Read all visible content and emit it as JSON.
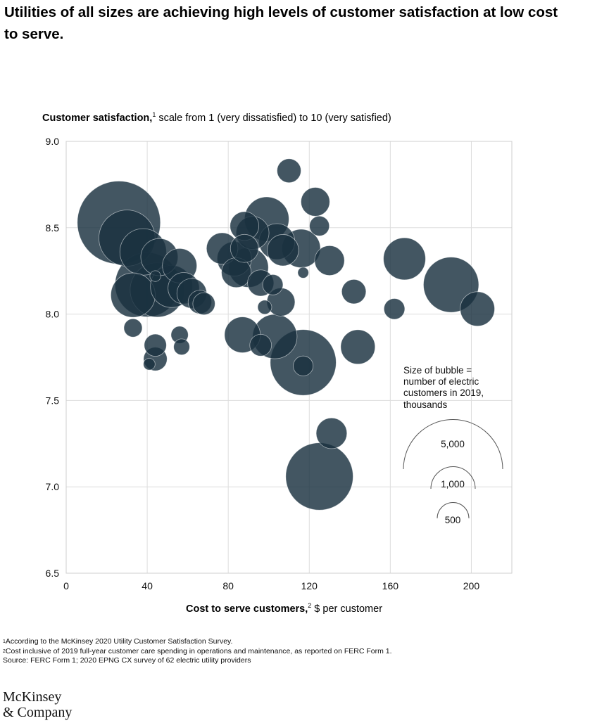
{
  "title": "Utilities of all sizes are achieving high levels of customer satisfaction at low cost to serve.",
  "ylabel": {
    "bold": "Customer satisfaction,",
    "sup": "1",
    "rest": " scale from 1 (very dissatisfied) to 10 (very satisfied)"
  },
  "xlabel": {
    "bold": "Cost to serve customers,",
    "sup": "2",
    "rest": " $ per customer"
  },
  "legend": {
    "lines": [
      "Size of bubble =",
      "number of electric",
      "customers in 2019,",
      "thousands"
    ],
    "items": [
      {
        "label": "5,000",
        "value": 5000
      },
      {
        "label": "1,000",
        "value": 1000
      },
      {
        "label": "500",
        "value": 500
      }
    ]
  },
  "footnotes": [
    {
      "sup": "1",
      "text": "According to the McKinsey 2020 Utility Customer Satisfaction Survey."
    },
    {
      "sup": "2",
      "text": "Cost inclusive of 2019 full-year customer care spending in operations and maintenance, as reported on FERC Form 1."
    },
    {
      "sup": "",
      "text": " Source: FERC Form 1; 2020 EPNG CX survey of 62 electric utility providers"
    }
  ],
  "brand": {
    "line1": "McKinsey",
    "line2": "& Company"
  },
  "colors": {
    "bubble": "#1a3140",
    "grid": "#dddddd",
    "legend_stroke": "#555555"
  },
  "chart_data": {
    "type": "scatter",
    "xlim": [
      0,
      220
    ],
    "ylim": [
      6.5,
      9.0
    ],
    "xticks": [
      "0",
      "40",
      "80",
      "120",
      "160",
      "200"
    ],
    "yticks": [
      "6.5",
      "7.0",
      "7.5",
      "8.0",
      "8.5",
      "9.0"
    ],
    "grid": true,
    "points": [
      {
        "x": 26,
        "y": 8.53,
        "size": 3500
      },
      {
        "x": 30,
        "y": 8.44,
        "size": 1600
      },
      {
        "x": 38,
        "y": 8.36,
        "size": 1100
      },
      {
        "x": 46,
        "y": 8.33,
        "size": 700
      },
      {
        "x": 40,
        "y": 8.17,
        "size": 2100
      },
      {
        "x": 33,
        "y": 8.11,
        "size": 1000
      },
      {
        "x": 45,
        "y": 8.14,
        "size": 1500
      },
      {
        "x": 52,
        "y": 8.16,
        "size": 900
      },
      {
        "x": 56,
        "y": 8.28,
        "size": 600
      },
      {
        "x": 58,
        "y": 8.15,
        "size": 500
      },
      {
        "x": 62,
        "y": 8.12,
        "size": 450
      },
      {
        "x": 66,
        "y": 8.07,
        "size": 280
      },
      {
        "x": 68,
        "y": 8.06,
        "size": 250
      },
      {
        "x": 44,
        "y": 8.22,
        "size": 60
      },
      {
        "x": 33,
        "y": 7.92,
        "size": 170
      },
      {
        "x": 44,
        "y": 7.82,
        "size": 250
      },
      {
        "x": 44,
        "y": 7.74,
        "size": 280
      },
      {
        "x": 41,
        "y": 7.71,
        "size": 70
      },
      {
        "x": 56,
        "y": 7.88,
        "size": 150
      },
      {
        "x": 57,
        "y": 7.81,
        "size": 130
      },
      {
        "x": 77,
        "y": 8.38,
        "size": 500
      },
      {
        "x": 83,
        "y": 8.32,
        "size": 600
      },
      {
        "x": 84,
        "y": 8.24,
        "size": 450
      },
      {
        "x": 90,
        "y": 8.27,
        "size": 800
      },
      {
        "x": 88,
        "y": 8.51,
        "size": 420
      },
      {
        "x": 92,
        "y": 8.47,
        "size": 550
      },
      {
        "x": 99,
        "y": 8.55,
        "size": 1000
      },
      {
        "x": 88,
        "y": 8.38,
        "size": 400
      },
      {
        "x": 104,
        "y": 8.42,
        "size": 650
      },
      {
        "x": 107,
        "y": 8.37,
        "size": 500
      },
      {
        "x": 116,
        "y": 8.38,
        "size": 750
      },
      {
        "x": 125,
        "y": 8.51,
        "size": 200
      },
      {
        "x": 123,
        "y": 8.65,
        "size": 420
      },
      {
        "x": 110,
        "y": 8.83,
        "size": 290
      },
      {
        "x": 130,
        "y": 8.31,
        "size": 450
      },
      {
        "x": 117,
        "y": 8.24,
        "size": 60
      },
      {
        "x": 96,
        "y": 8.18,
        "size": 350
      },
      {
        "x": 102,
        "y": 8.17,
        "size": 210
      },
      {
        "x": 106,
        "y": 8.07,
        "size": 400
      },
      {
        "x": 98,
        "y": 8.04,
        "size": 100
      },
      {
        "x": 87,
        "y": 7.88,
        "size": 650
      },
      {
        "x": 103,
        "y": 7.87,
        "size": 1000
      },
      {
        "x": 96,
        "y": 7.82,
        "size": 240
      },
      {
        "x": 117,
        "y": 7.72,
        "size": 2200
      },
      {
        "x": 144,
        "y": 7.81,
        "size": 600
      },
      {
        "x": 117,
        "y": 7.7,
        "size": 200
      },
      {
        "x": 142,
        "y": 8.13,
        "size": 300
      },
      {
        "x": 167,
        "y": 8.32,
        "size": 900
      },
      {
        "x": 162,
        "y": 8.03,
        "size": 220
      },
      {
        "x": 190,
        "y": 8.17,
        "size": 1550
      },
      {
        "x": 203,
        "y": 8.03,
        "size": 600
      },
      {
        "x": 131,
        "y": 7.31,
        "size": 480
      },
      {
        "x": 125,
        "y": 7.06,
        "size": 2300
      }
    ]
  }
}
